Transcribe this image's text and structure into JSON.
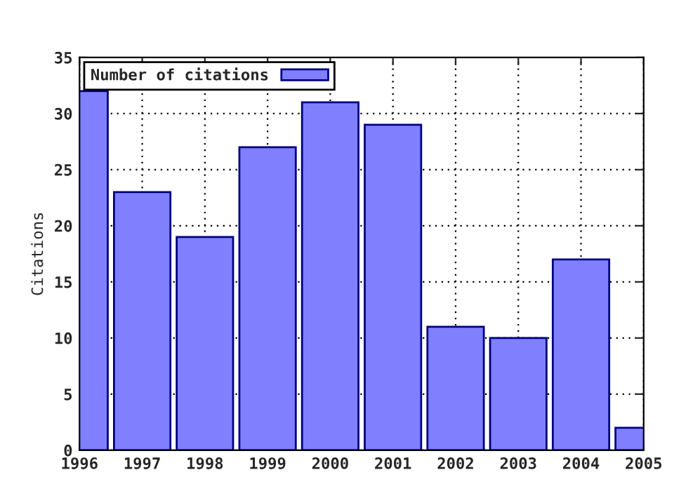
{
  "chart_data": {
    "type": "bar",
    "ylabel": "Citations",
    "x": [
      1996,
      1997,
      1998,
      1999,
      2000,
      2001,
      2002,
      2003,
      2004,
      2005
    ],
    "series": [
      {
        "name": "Number of citations",
        "color": "#8080ff",
        "values": [
          32,
          23,
          19,
          27,
          31,
          29,
          11,
          10,
          17,
          2
        ]
      }
    ],
    "xlim": [
      1996,
      2005
    ],
    "xticks": [
      1996,
      1997,
      1998,
      1999,
      2000,
      2001,
      2002,
      2003,
      2004,
      2005
    ],
    "ylim": [
      0,
      35
    ],
    "yticks": [
      0,
      5,
      10,
      15,
      20,
      25,
      30,
      35
    ],
    "grid": true,
    "legend": "top left"
  }
}
